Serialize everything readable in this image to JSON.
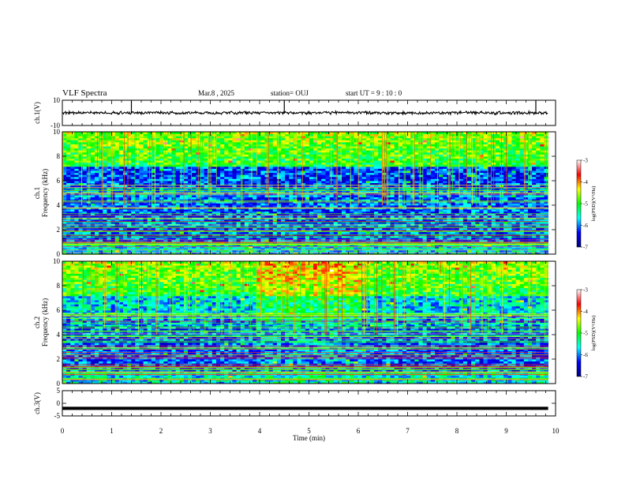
{
  "header": {
    "title": "VLF Spectra",
    "date": "Mar.8 , 2025",
    "station": "station= OUJ",
    "start_ut": "start UT = 9 : 10 : 0"
  },
  "chart_data": [
    {
      "type": "line",
      "panel": "ch1-waveform",
      "ylabel": "ch.1(V)",
      "ylim": [
        -10,
        10
      ],
      "y_ticks": [
        "10",
        "-10"
      ],
      "xlim": [
        0,
        10
      ],
      "baseline": 0,
      "color": "#000000"
    },
    {
      "type": "heatmap",
      "panel": "ch1-spectrogram",
      "ylabel": "ch.1\nFrequency (kHz)",
      "ylim": [
        0,
        10
      ],
      "y_ticks": [
        "0",
        "2",
        "4",
        "6",
        "8",
        "10"
      ],
      "xlim": [
        0,
        9.85
      ],
      "colorbar": {
        "label": "log(PSD)(V²/Hz)",
        "range": [
          -7,
          -3
        ],
        "ticks": [
          "-3",
          "-4",
          "-5",
          "-6",
          "-7"
        ],
        "colors": [
          "#000080",
          "#0000ff",
          "#00ffff",
          "#00ff00",
          "#ffff00",
          "#ff0000",
          "#ffffff"
        ]
      }
    },
    {
      "type": "heatmap",
      "panel": "ch2-spectrogram",
      "ylabel": "ch.2\nFrequency (kHz)",
      "ylim": [
        0,
        10
      ],
      "y_ticks": [
        "0",
        "2",
        "4",
        "6",
        "8",
        "10"
      ],
      "xlim": [
        0,
        9.85
      ],
      "colorbar": {
        "label": "log(PSD)(V²/Hz)",
        "range": [
          -7,
          -3
        ],
        "ticks": [
          "-3",
          "-4",
          "-5",
          "-6",
          "-7"
        ],
        "colors": [
          "#000080",
          "#0000ff",
          "#00ffff",
          "#00ff00",
          "#ffff00",
          "#ff0000",
          "#ffffff"
        ]
      }
    },
    {
      "type": "line",
      "panel": "ch3-waveform",
      "ylabel": "ch.3(V)",
      "ylim": [
        -5,
        5
      ],
      "y_ticks": [
        "5",
        "0",
        "-5"
      ],
      "xlim": [
        0,
        10
      ],
      "baseline": -2,
      "color": "#000000"
    }
  ],
  "x_axis": {
    "label": "Time (min)",
    "ticks": [
      "0",
      "1",
      "2",
      "3",
      "4",
      "5",
      "6",
      "7",
      "8",
      "9",
      "10"
    ],
    "range": [
      0,
      10
    ]
  }
}
